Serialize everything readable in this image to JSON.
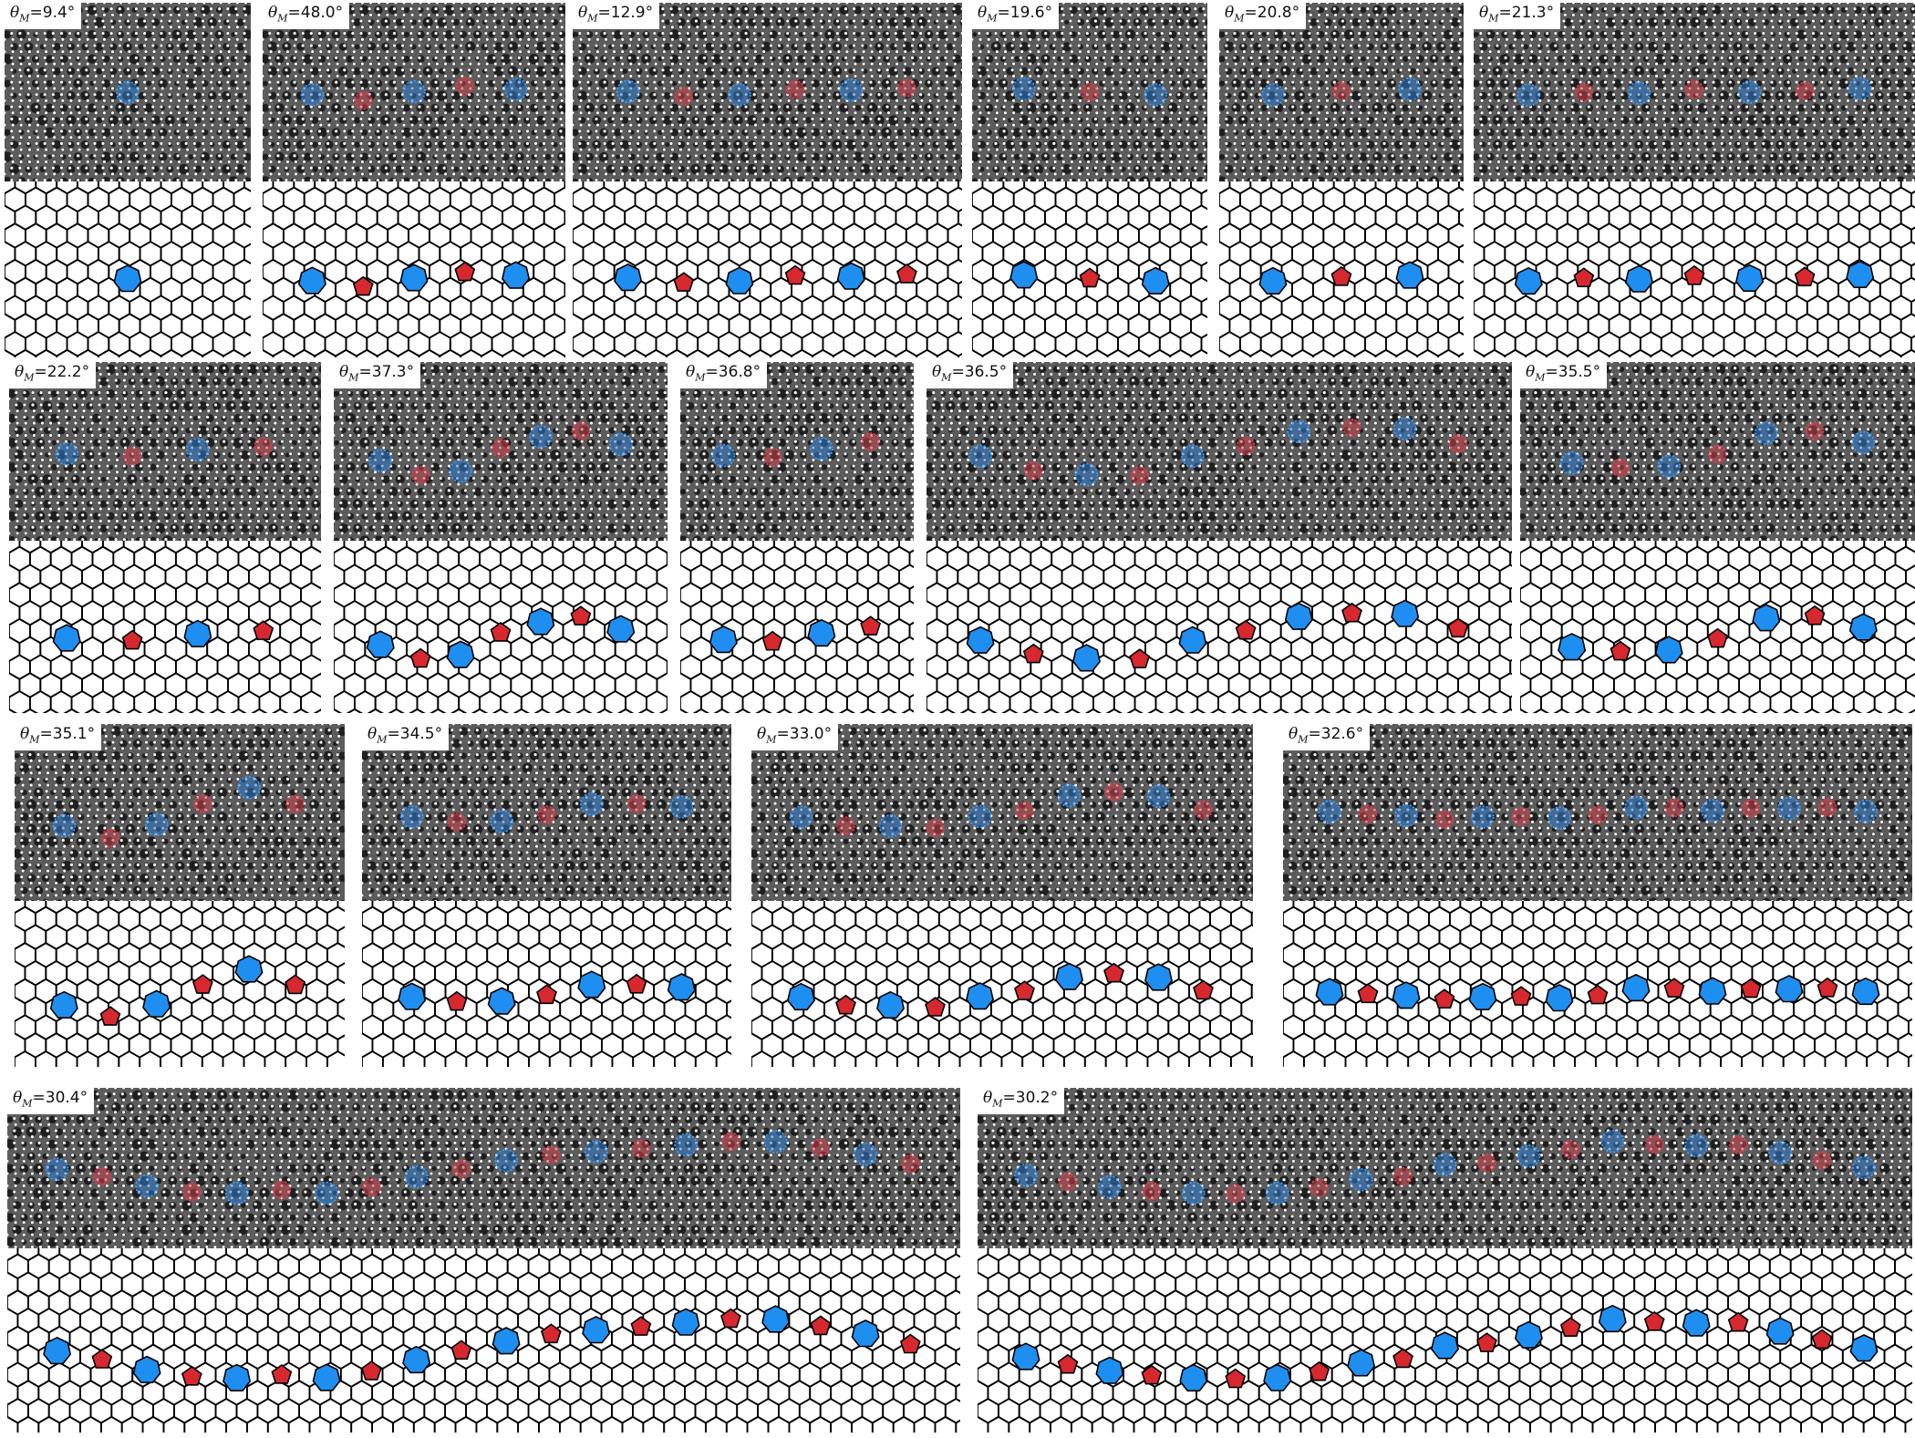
{
  "figure": {
    "label_symbol": "θ",
    "label_subscript": "M",
    "label_separator": "=",
    "colors": {
      "pentagon_fill": "#d7282f",
      "heptagon_fill": "#1e8ff0",
      "stem_pentagon_overlay": "#c8404a",
      "stem_heptagon_overlay": "#2e78c8",
      "lattice_stroke": "#000000",
      "atom_marker": "#ffffff"
    },
    "panels": [
      {
        "id": "p1",
        "angle": "9.4°",
        "defects": 1
      },
      {
        "id": "p2",
        "angle": "48.0°",
        "defects": 5
      },
      {
        "id": "p3",
        "angle": "12.9°",
        "defects": 6
      },
      {
        "id": "p4",
        "angle": "19.6°",
        "defects": 3
      },
      {
        "id": "p5",
        "angle": "20.8°",
        "defects": 3
      },
      {
        "id": "p6",
        "angle": "21.3°",
        "defects": 7
      },
      {
        "id": "p7",
        "angle": "22.2°",
        "defects": 4
      },
      {
        "id": "p8",
        "angle": "37.3°",
        "defects": 7
      },
      {
        "id": "p9",
        "angle": "36.8°",
        "defects": 4
      },
      {
        "id": "p10",
        "angle": "36.5°",
        "defects": 10
      },
      {
        "id": "p11",
        "angle": "35.5°",
        "defects": 7
      },
      {
        "id": "p12",
        "angle": "35.1°",
        "defects": 6
      },
      {
        "id": "p13",
        "angle": "34.5°",
        "defects": 7
      },
      {
        "id": "p14",
        "angle": "33.0°",
        "defects": 10
      },
      {
        "id": "p15",
        "angle": "32.6°",
        "defects": 15
      },
      {
        "id": "p16",
        "angle": "30.4°",
        "defects": 20
      },
      {
        "id": "p17",
        "angle": "30.2°",
        "defects": 21
      }
    ]
  }
}
